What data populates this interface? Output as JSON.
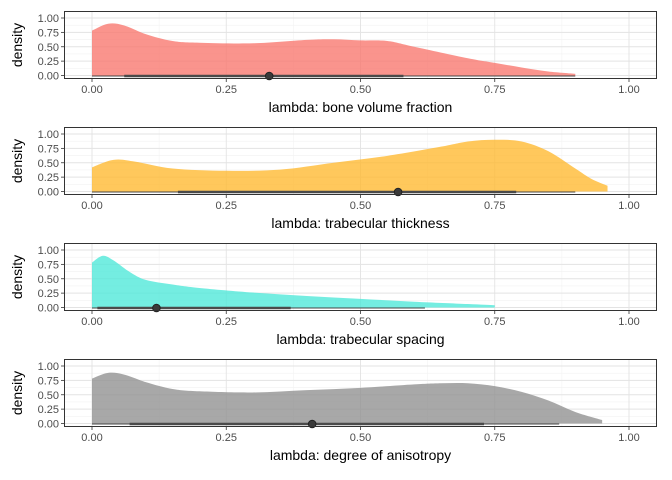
{
  "chart_data": [
    {
      "type": "area",
      "xlabel": "lambda: bone volume fraction",
      "ylabel": "density",
      "xlim": [
        0,
        1
      ],
      "ylim": [
        0,
        1
      ],
      "x_ticks": [
        "0.00",
        "0.25",
        "0.50",
        "0.75",
        "1.00"
      ],
      "y_ticks": [
        "0.00",
        "0.25",
        "0.50",
        "0.75",
        "1.00"
      ],
      "grid": true,
      "fill_color": "#f8766d",
      "density_curve": {
        "x": [
          0.0,
          0.03,
          0.06,
          0.1,
          0.15,
          0.2,
          0.3,
          0.4,
          0.45,
          0.5,
          0.55,
          0.6,
          0.7,
          0.75,
          0.8,
          0.85,
          0.9
        ],
        "y": [
          0.78,
          0.9,
          0.87,
          0.72,
          0.6,
          0.57,
          0.56,
          0.62,
          0.63,
          0.61,
          0.6,
          0.5,
          0.3,
          0.22,
          0.14,
          0.07,
          0.03
        ]
      },
      "interval": {
        "low_thin": 0.0,
        "low": 0.06,
        "point": 0.33,
        "high": 0.58,
        "high_thin": 0.9
      }
    },
    {
      "type": "area",
      "xlabel": "lambda: trabecular thickness",
      "ylabel": "density",
      "xlim": [
        0,
        1
      ],
      "ylim": [
        0,
        1
      ],
      "x_ticks": [
        "0.00",
        "0.25",
        "0.50",
        "0.75",
        "1.00"
      ],
      "y_ticks": [
        "0.00",
        "0.25",
        "0.50",
        "0.75",
        "1.00"
      ],
      "grid": true,
      "fill_color": "#ffb92e",
      "density_curve": {
        "x": [
          0.0,
          0.04,
          0.08,
          0.15,
          0.25,
          0.35,
          0.45,
          0.55,
          0.65,
          0.7,
          0.75,
          0.8,
          0.85,
          0.9,
          0.93,
          0.96
        ],
        "y": [
          0.42,
          0.55,
          0.52,
          0.4,
          0.36,
          0.38,
          0.5,
          0.62,
          0.78,
          0.87,
          0.9,
          0.87,
          0.7,
          0.4,
          0.22,
          0.1
        ]
      },
      "interval": {
        "low_thin": 0.0,
        "low": 0.16,
        "point": 0.57,
        "high": 0.79,
        "high_thin": 0.9
      }
    },
    {
      "type": "area",
      "xlabel": "lambda: trabecular spacing",
      "ylabel": "density",
      "xlim": [
        0,
        1
      ],
      "ylim": [
        0,
        1
      ],
      "x_ticks": [
        "0.00",
        "0.25",
        "0.50",
        "0.75",
        "1.00"
      ],
      "y_ticks": [
        "0.00",
        "0.25",
        "0.50",
        "0.75",
        "1.00"
      ],
      "grid": true,
      "fill_color": "#4de8d8",
      "density_curve": {
        "x": [
          0.0,
          0.02,
          0.04,
          0.07,
          0.1,
          0.15,
          0.2,
          0.3,
          0.4,
          0.5,
          0.6,
          0.7,
          0.75
        ],
        "y": [
          0.78,
          0.9,
          0.82,
          0.62,
          0.48,
          0.4,
          0.34,
          0.26,
          0.2,
          0.15,
          0.1,
          0.06,
          0.04
        ]
      },
      "interval": {
        "low_thin": 0.0,
        "low": 0.01,
        "point": 0.12,
        "high": 0.37,
        "high_thin": 0.62
      }
    },
    {
      "type": "area",
      "xlabel": "lambda: degree of anisotropy",
      "ylabel": "density",
      "xlim": [
        0,
        1
      ],
      "ylim": [
        0,
        1
      ],
      "x_ticks": [
        "0.00",
        "0.25",
        "0.50",
        "0.75",
        "1.00"
      ],
      "y_ticks": [
        "0.00",
        "0.25",
        "0.50",
        "0.75",
        "1.00"
      ],
      "grid": true,
      "fill_color": "#8f8f8f",
      "density_curve": {
        "x": [
          0.0,
          0.03,
          0.06,
          0.1,
          0.15,
          0.2,
          0.3,
          0.4,
          0.5,
          0.6,
          0.65,
          0.7,
          0.75,
          0.8,
          0.85,
          0.9,
          0.95
        ],
        "y": [
          0.78,
          0.88,
          0.85,
          0.72,
          0.6,
          0.56,
          0.54,
          0.58,
          0.62,
          0.68,
          0.7,
          0.7,
          0.65,
          0.55,
          0.4,
          0.2,
          0.06
        ]
      },
      "interval": {
        "low_thin": 0.0,
        "low": 0.07,
        "point": 0.41,
        "high": 0.73,
        "high_thin": 0.87
      }
    }
  ]
}
